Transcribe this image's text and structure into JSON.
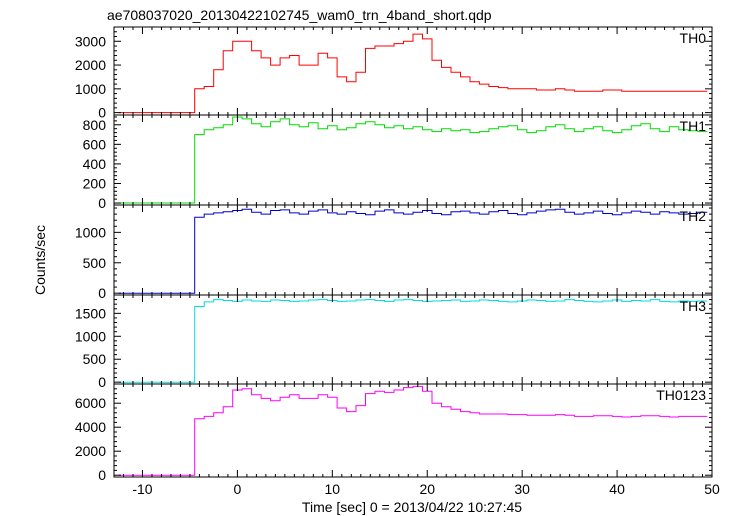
{
  "chart_data": {
    "type": "line",
    "title": "ae708037020_20130422102745_wam0_trn_4band_short.qdp",
    "xlabel": "Time [sec] 0 = 2013/04/22 10:27:45",
    "ylabel": "Counts/sec",
    "xlim": [
      -13,
      50
    ],
    "xticks": [
      -10,
      0,
      10,
      20,
      30,
      40,
      50
    ],
    "x": [
      -12,
      -11,
      -10,
      -9,
      -8,
      -7,
      -6,
      -5,
      -4,
      -3,
      -2,
      -1,
      0,
      1,
      2,
      3,
      4,
      5,
      6,
      7,
      8,
      9,
      10,
      11,
      12,
      13,
      14,
      15,
      16,
      17,
      18,
      19,
      20,
      21,
      22,
      23,
      24,
      25,
      26,
      27,
      28,
      29,
      30,
      31,
      32,
      33,
      34,
      35,
      36,
      37,
      38,
      39,
      40,
      41,
      42,
      43,
      44,
      45,
      46,
      47,
      48,
      49
    ],
    "series": [
      {
        "name": "TH0",
        "color": "#ff0000",
        "ylim": [
          -100,
          3600
        ],
        "yticks": [
          0,
          1000,
          2000,
          3000
        ],
        "values": [
          0,
          0,
          0,
          0,
          0,
          0,
          0,
          0,
          1000,
          1100,
          1800,
          2600,
          3000,
          3000,
          2600,
          2300,
          2000,
          2300,
          2400,
          2000,
          2000,
          2500,
          2300,
          1500,
          1300,
          1700,
          2700,
          2800,
          2800,
          2900,
          3000,
          3300,
          3100,
          2200,
          1900,
          1700,
          1500,
          1300,
          1200,
          1100,
          1050,
          1000,
          1000,
          1000,
          950,
          950,
          1000,
          950,
          900,
          900,
          900,
          950,
          950,
          900,
          900,
          900,
          900,
          900,
          900,
          900,
          900,
          900
        ]
      },
      {
        "name": "TH1",
        "color": "#00dd00",
        "ylim": [
          -20,
          900
        ],
        "yticks": [
          0,
          200,
          400,
          600,
          800
        ],
        "values": [
          0,
          0,
          0,
          0,
          0,
          0,
          0,
          0,
          700,
          750,
          770,
          800,
          880,
          860,
          810,
          780,
          830,
          860,
          800,
          780,
          820,
          760,
          790,
          750,
          770,
          810,
          830,
          800,
          770,
          790,
          760,
          780,
          750,
          730,
          760,
          740,
          750,
          720,
          730,
          760,
          780,
          790,
          750,
          720,
          740,
          780,
          800,
          760,
          730,
          760,
          780,
          740,
          720,
          750,
          790,
          810,
          760,
          730,
          780,
          750,
          740,
          730
        ]
      },
      {
        "name": "TH2",
        "color": "#0000cc",
        "ylim": [
          -30,
          1450
        ],
        "yticks": [
          0,
          500,
          1000
        ],
        "values": [
          0,
          0,
          0,
          0,
          0,
          0,
          0,
          0,
          1250,
          1300,
          1320,
          1340,
          1360,
          1380,
          1330,
          1300,
          1360,
          1370,
          1320,
          1300,
          1350,
          1370,
          1320,
          1300,
          1340,
          1310,
          1290,
          1350,
          1370,
          1320,
          1300,
          1330,
          1360,
          1310,
          1290,
          1340,
          1350,
          1320,
          1300,
          1340,
          1360,
          1310,
          1290,
          1320,
          1350,
          1370,
          1380,
          1330,
          1300,
          1320,
          1350,
          1310,
          1290,
          1320,
          1350,
          1330,
          1300,
          1340,
          1320,
          1300,
          1310,
          1330
        ]
      },
      {
        "name": "TH3",
        "color": "#00dddd",
        "ylim": [
          -40,
          1900
        ],
        "yticks": [
          0,
          500,
          1000,
          1500
        ],
        "values": [
          0,
          0,
          0,
          0,
          0,
          0,
          0,
          0,
          1650,
          1750,
          1800,
          1780,
          1760,
          1790,
          1770,
          1760,
          1790,
          1780,
          1760,
          1770,
          1790,
          1800,
          1780,
          1760,
          1770,
          1790,
          1800,
          1780,
          1760,
          1790,
          1800,
          1780,
          1760,
          1770,
          1780,
          1790,
          1760,
          1770,
          1790,
          1780,
          1760,
          1750,
          1770,
          1790,
          1780,
          1760,
          1770,
          1800,
          1780,
          1760,
          1750,
          1770,
          1790,
          1760,
          1780,
          1770,
          1800,
          1760,
          1750,
          1770,
          1760,
          1770
        ]
      },
      {
        "name": "TH0123",
        "color": "#ff00ff",
        "ylim": [
          -150,
          7600
        ],
        "yticks": [
          0,
          2000,
          4000,
          6000
        ],
        "values": [
          0,
          0,
          0,
          0,
          0,
          0,
          0,
          0,
          4700,
          4900,
          5200,
          5700,
          7100,
          7200,
          6700,
          6400,
          6200,
          6500,
          6700,
          6400,
          6400,
          6700,
          6500,
          5600,
          5300,
          5800,
          6800,
          7000,
          6900,
          7100,
          7300,
          7400,
          7000,
          6000,
          5700,
          5500,
          5300,
          5200,
          5100,
          5100,
          5100,
          5050,
          5050,
          5000,
          5000,
          5000,
          5050,
          5000,
          4900,
          4900,
          4950,
          4950,
          4900,
          4850,
          4900,
          4950,
          4950,
          4900,
          4850,
          4900,
          4900,
          4900
        ]
      }
    ]
  }
}
